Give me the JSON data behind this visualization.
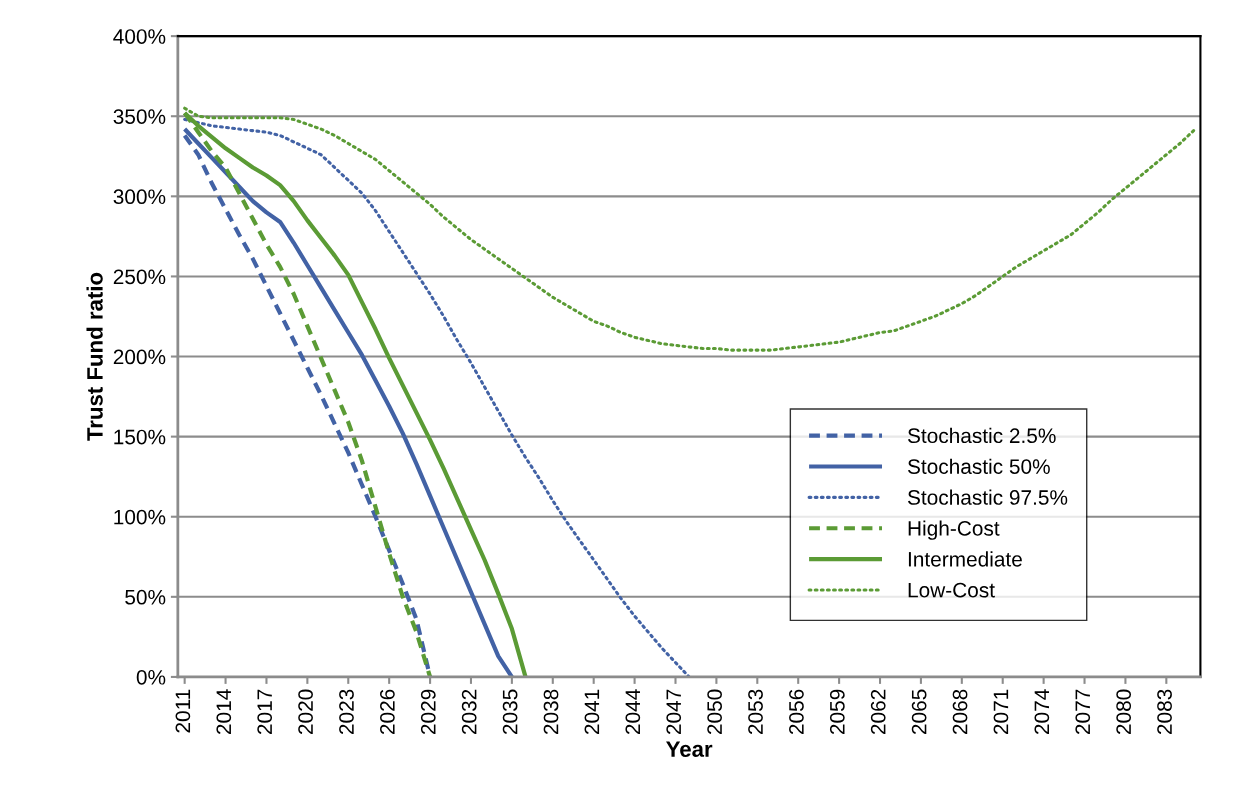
{
  "chart_data": {
    "type": "line",
    "xlabel": "Year",
    "ylabel": "Trust Fund ratio",
    "xlim": [
      2010.5,
      2085.5
    ],
    "xticks": [
      2011,
      2014,
      2017,
      2020,
      2023,
      2026,
      2029,
      2032,
      2035,
      2038,
      2041,
      2044,
      2047,
      2050,
      2053,
      2056,
      2059,
      2062,
      2065,
      2068,
      2071,
      2074,
      2077,
      2080,
      2083
    ],
    "ylim": [
      0,
      400
    ],
    "yticks": [
      {
        "value": 0,
        "label": "0%"
      },
      {
        "value": 50,
        "label": "50%"
      },
      {
        "value": 100,
        "label": "100%"
      },
      {
        "value": 150,
        "label": "150%"
      },
      {
        "value": 200,
        "label": "200%"
      },
      {
        "value": 250,
        "label": "250%"
      },
      {
        "value": 300,
        "label": "300%"
      },
      {
        "value": 350,
        "label": "350%"
      },
      {
        "value": 400,
        "label": "400%"
      }
    ],
    "grid": "y",
    "legend": "right",
    "marker": "none",
    "series": [
      {
        "name": "Stochastic 2.5%",
        "color": "#4262a5",
        "line_style": "dashed",
        "x": [
          2011,
          2012,
          2013,
          2014,
          2015,
          2016,
          2017,
          2018,
          2019,
          2020,
          2021,
          2022,
          2023,
          2024,
          2025,
          2026,
          2027,
          2028,
          2029
        ],
        "values": [
          338,
          326,
          308,
          292,
          276,
          261,
          244,
          227,
          210,
          193,
          176,
          158,
          140,
          120,
          100,
          79,
          58,
          36,
          0
        ]
      },
      {
        "name": "Stochastic 50%",
        "color": "#4262a5",
        "line_style": "solid",
        "x": [
          2011,
          2012,
          2013,
          2014,
          2015,
          2016,
          2017,
          2018,
          2019,
          2020,
          2021,
          2022,
          2023,
          2024,
          2025,
          2026,
          2027,
          2028,
          2029,
          2030,
          2031,
          2032,
          2033,
          2034,
          2035
        ],
        "values": [
          342,
          333,
          324,
          315,
          306,
          297,
          290,
          284,
          271,
          257,
          243,
          229,
          215,
          201,
          185,
          169,
          152,
          133,
          113,
          93,
          73,
          53,
          33,
          13,
          0
        ]
      },
      {
        "name": "Stochastic 97.5%",
        "color": "#4262a5",
        "line_style": "dotted",
        "x": [
          2011,
          2012,
          2013,
          2014,
          2015,
          2016,
          2017,
          2018,
          2019,
          2020,
          2021,
          2022,
          2023,
          2024,
          2025,
          2026,
          2027,
          2028,
          2029,
          2030,
          2031,
          2032,
          2033,
          2034,
          2035,
          2036,
          2037,
          2038,
          2039,
          2040,
          2041,
          2042,
          2043,
          2044,
          2045,
          2046,
          2047,
          2048
        ],
        "values": [
          348,
          346,
          344,
          343,
          342,
          341,
          340,
          338,
          334,
          330,
          326,
          318,
          310,
          302,
          291,
          278,
          265,
          252,
          239,
          225,
          210,
          196,
          181,
          166,
          151,
          137,
          124,
          110,
          97,
          85,
          73,
          61,
          49,
          38,
          28,
          18,
          9,
          0
        ]
      },
      {
        "name": "High-Cost",
        "color": "#5b9b35",
        "line_style": "dashed",
        "x": [
          2011,
          2012,
          2013,
          2014,
          2015,
          2016,
          2017,
          2018,
          2019,
          2020,
          2021,
          2022,
          2023,
          2024,
          2025,
          2026,
          2027,
          2028,
          2029
        ],
        "values": [
          352,
          340,
          328,
          318,
          302,
          286,
          270,
          256,
          239,
          219,
          199,
          179,
          159,
          135,
          106,
          77,
          50,
          28,
          0
        ]
      },
      {
        "name": "Intermediate",
        "color": "#5b9b35",
        "line_style": "solid",
        "x": [
          2011,
          2012,
          2013,
          2014,
          2015,
          2016,
          2017,
          2018,
          2019,
          2020,
          2021,
          2022,
          2023,
          2024,
          2025,
          2026,
          2027,
          2028,
          2029,
          2030,
          2031,
          2032,
          2033,
          2034,
          2035,
          2036
        ],
        "values": [
          352,
          344,
          337,
          330,
          324,
          318,
          313,
          307,
          297,
          285,
          274,
          263,
          251,
          234,
          217,
          199,
          182,
          165,
          148,
          130,
          111,
          92,
          73,
          52,
          30,
          0
        ]
      },
      {
        "name": "Low-Cost",
        "color": "#5b9b35",
        "line_style": "dotted",
        "x": [
          2011,
          2012,
          2013,
          2014,
          2015,
          2016,
          2017,
          2018,
          2019,
          2020,
          2021,
          2022,
          2023,
          2024,
          2025,
          2026,
          2027,
          2028,
          2029,
          2030,
          2031,
          2032,
          2033,
          2034,
          2035,
          2036,
          2037,
          2038,
          2039,
          2040,
          2041,
          2042,
          2043,
          2044,
          2045,
          2046,
          2047,
          2048,
          2049,
          2050,
          2051,
          2052,
          2053,
          2054,
          2055,
          2056,
          2057,
          2058,
          2059,
          2060,
          2061,
          2062,
          2063,
          2064,
          2065,
          2066,
          2067,
          2068,
          2069,
          2070,
          2071,
          2072,
          2073,
          2074,
          2075,
          2076,
          2077,
          2078,
          2079,
          2080,
          2081,
          2082,
          2083,
          2084,
          2085
        ],
        "values": [
          355,
          350,
          349,
          349,
          349,
          349,
          349,
          349,
          348,
          345,
          342,
          338,
          333,
          328,
          323,
          316,
          309,
          302,
          295,
          287,
          280,
          273,
          267,
          261,
          255,
          249,
          243,
          237,
          232,
          227,
          222,
          219,
          215,
          212,
          210,
          208,
          207,
          206,
          205,
          205,
          204,
          204,
          204,
          204,
          205,
          206,
          207,
          208,
          209,
          211,
          213,
          215,
          216,
          219,
          222,
          225,
          229,
          233,
          238,
          244,
          250,
          256,
          261,
          266,
          271,
          276,
          283,
          290,
          298,
          305,
          312,
          319,
          326,
          333,
          341
        ]
      }
    ]
  }
}
